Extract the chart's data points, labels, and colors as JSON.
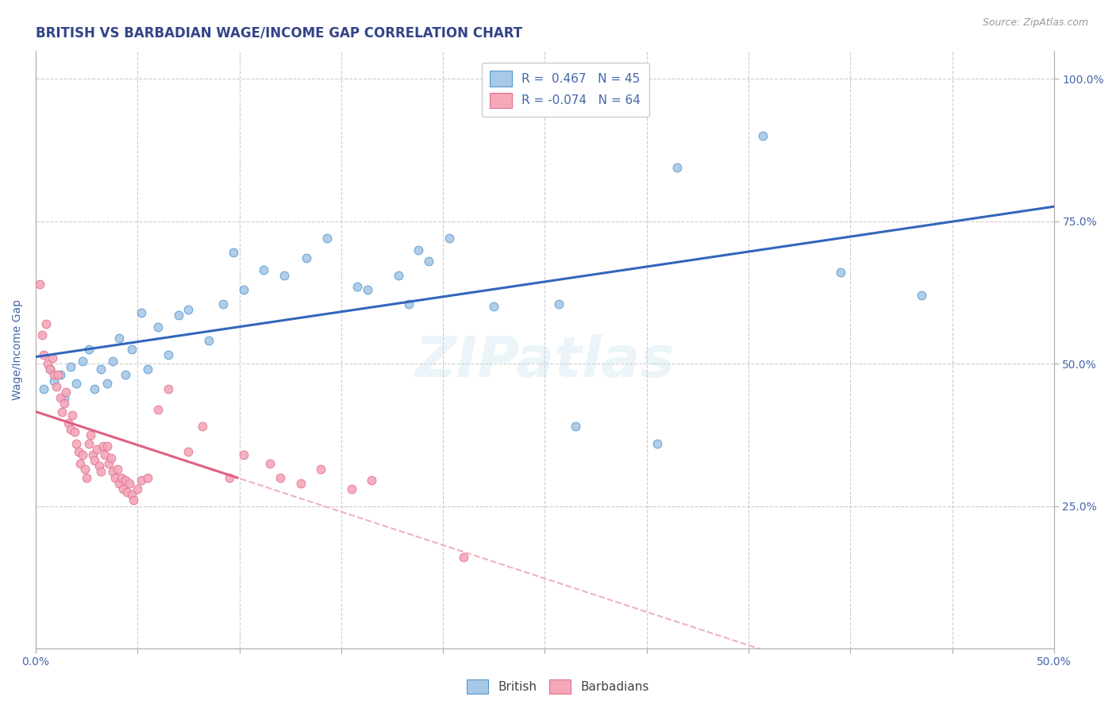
{
  "title": "BRITISH VS BARBADIAN WAGE/INCOME GAP CORRELATION CHART",
  "source": "Source: ZipAtlas.com",
  "ylabel": "Wage/Income Gap",
  "watermark": "ZIPatlas",
  "blue_color": "#A8C8E8",
  "blue_edge_color": "#5599CC",
  "pink_color": "#F4A8B8",
  "pink_edge_color": "#E07090",
  "blue_line_color": "#3366BB",
  "pink_line_color": "#E06080",
  "pink_dashed_color": "#F0B0C0",
  "grid_color": "#CCCCCC",
  "title_color": "#334488",
  "axis_color": "#4466AA",
  "xmin": 0.0,
  "xmax": 0.5,
  "ymin": 0.0,
  "ymax": 1.05,
  "british_points": [
    [
      0.004,
      0.455
    ],
    [
      0.007,
      0.49
    ],
    [
      0.009,
      0.47
    ],
    [
      0.012,
      0.48
    ],
    [
      0.014,
      0.44
    ],
    [
      0.017,
      0.495
    ],
    [
      0.02,
      0.465
    ],
    [
      0.023,
      0.505
    ],
    [
      0.026,
      0.525
    ],
    [
      0.029,
      0.455
    ],
    [
      0.032,
      0.49
    ],
    [
      0.035,
      0.465
    ],
    [
      0.038,
      0.505
    ],
    [
      0.041,
      0.545
    ],
    [
      0.044,
      0.48
    ],
    [
      0.047,
      0.525
    ],
    [
      0.052,
      0.59
    ],
    [
      0.055,
      0.49
    ],
    [
      0.06,
      0.565
    ],
    [
      0.065,
      0.515
    ],
    [
      0.07,
      0.585
    ],
    [
      0.075,
      0.595
    ],
    [
      0.085,
      0.54
    ],
    [
      0.092,
      0.605
    ],
    [
      0.097,
      0.695
    ],
    [
      0.102,
      0.63
    ],
    [
      0.112,
      0.665
    ],
    [
      0.122,
      0.655
    ],
    [
      0.133,
      0.685
    ],
    [
      0.143,
      0.72
    ],
    [
      0.158,
      0.635
    ],
    [
      0.163,
      0.63
    ],
    [
      0.178,
      0.655
    ],
    [
      0.183,
      0.605
    ],
    [
      0.188,
      0.7
    ],
    [
      0.193,
      0.68
    ],
    [
      0.203,
      0.72
    ],
    [
      0.225,
      0.6
    ],
    [
      0.257,
      0.605
    ],
    [
      0.265,
      0.39
    ],
    [
      0.305,
      0.36
    ],
    [
      0.315,
      0.845
    ],
    [
      0.357,
      0.9
    ],
    [
      0.395,
      0.66
    ],
    [
      0.435,
      0.62
    ]
  ],
  "barbadian_points": [
    [
      0.002,
      0.64
    ],
    [
      0.003,
      0.55
    ],
    [
      0.004,
      0.515
    ],
    [
      0.005,
      0.57
    ],
    [
      0.006,
      0.5
    ],
    [
      0.007,
      0.49
    ],
    [
      0.008,
      0.51
    ],
    [
      0.009,
      0.48
    ],
    [
      0.01,
      0.46
    ],
    [
      0.011,
      0.48
    ],
    [
      0.012,
      0.44
    ],
    [
      0.013,
      0.415
    ],
    [
      0.014,
      0.43
    ],
    [
      0.015,
      0.45
    ],
    [
      0.016,
      0.395
    ],
    [
      0.017,
      0.385
    ],
    [
      0.018,
      0.41
    ],
    [
      0.019,
      0.38
    ],
    [
      0.02,
      0.36
    ],
    [
      0.021,
      0.345
    ],
    [
      0.022,
      0.325
    ],
    [
      0.023,
      0.34
    ],
    [
      0.024,
      0.315
    ],
    [
      0.025,
      0.3
    ],
    [
      0.026,
      0.36
    ],
    [
      0.027,
      0.375
    ],
    [
      0.028,
      0.34
    ],
    [
      0.029,
      0.33
    ],
    [
      0.03,
      0.35
    ],
    [
      0.031,
      0.32
    ],
    [
      0.032,
      0.31
    ],
    [
      0.033,
      0.355
    ],
    [
      0.034,
      0.34
    ],
    [
      0.035,
      0.355
    ],
    [
      0.036,
      0.325
    ],
    [
      0.037,
      0.335
    ],
    [
      0.038,
      0.31
    ],
    [
      0.039,
      0.3
    ],
    [
      0.04,
      0.315
    ],
    [
      0.041,
      0.29
    ],
    [
      0.042,
      0.3
    ],
    [
      0.043,
      0.28
    ],
    [
      0.044,
      0.295
    ],
    [
      0.045,
      0.275
    ],
    [
      0.046,
      0.29
    ],
    [
      0.047,
      0.27
    ],
    [
      0.048,
      0.26
    ],
    [
      0.05,
      0.28
    ],
    [
      0.052,
      0.295
    ],
    [
      0.055,
      0.3
    ],
    [
      0.06,
      0.42
    ],
    [
      0.065,
      0.455
    ],
    [
      0.075,
      0.345
    ],
    [
      0.082,
      0.39
    ],
    [
      0.095,
      0.3
    ],
    [
      0.102,
      0.34
    ],
    [
      0.115,
      0.325
    ],
    [
      0.12,
      0.3
    ],
    [
      0.13,
      0.29
    ],
    [
      0.14,
      0.315
    ],
    [
      0.155,
      0.28
    ],
    [
      0.165,
      0.295
    ],
    [
      0.21,
      0.16
    ]
  ]
}
